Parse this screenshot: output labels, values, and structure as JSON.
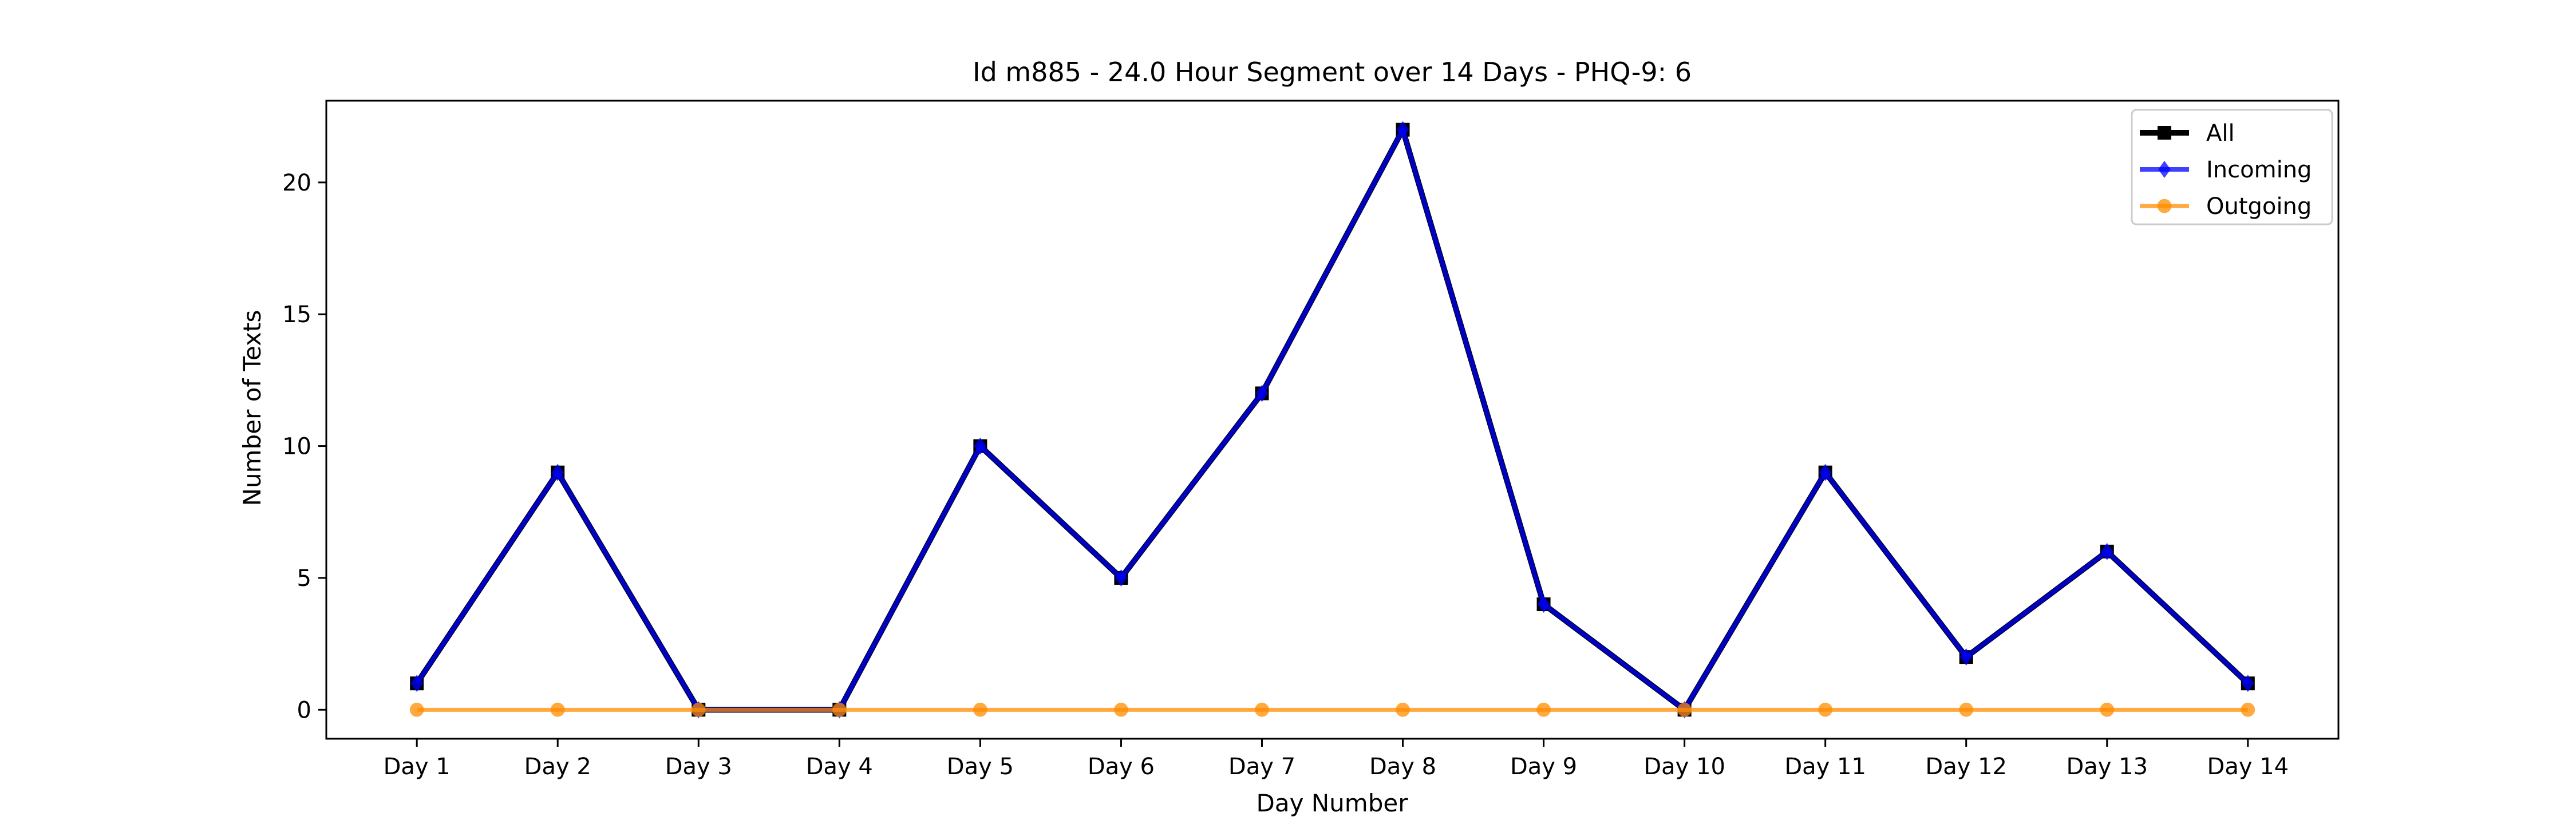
{
  "chart_data": {
    "type": "line",
    "title": "Id m885 - 24.0 Hour Segment over 14 Days - PHQ-9: 6",
    "xlabel": "Day Number",
    "ylabel": "Number of Texts",
    "categories": [
      "Day 1",
      "Day 2",
      "Day 3",
      "Day 4",
      "Day 5",
      "Day 6",
      "Day 7",
      "Day 8",
      "Day 9",
      "Day 10",
      "Day 11",
      "Day 12",
      "Day 13",
      "Day 14"
    ],
    "ylim": [
      -1.1,
      23.1
    ],
    "yticks": [
      0,
      5,
      10,
      15,
      20
    ],
    "grid": false,
    "legend_position": "top-right",
    "series": [
      {
        "name": "All",
        "color": "#000000",
        "marker": "square",
        "values": [
          1,
          9,
          0,
          0,
          10,
          5,
          12,
          22,
          4,
          0,
          9,
          2,
          6,
          1
        ]
      },
      {
        "name": "Incoming",
        "color": "#0000ff",
        "marker": "diamond",
        "values": [
          1,
          9,
          0,
          0,
          10,
          5,
          12,
          22,
          4,
          0,
          9,
          2,
          6,
          1
        ]
      },
      {
        "name": "Outgoing",
        "color": "#ff8c00",
        "marker": "circle",
        "values": [
          0,
          0,
          0,
          0,
          0,
          0,
          0,
          0,
          0,
          0,
          0,
          0,
          0,
          0
        ]
      }
    ]
  }
}
